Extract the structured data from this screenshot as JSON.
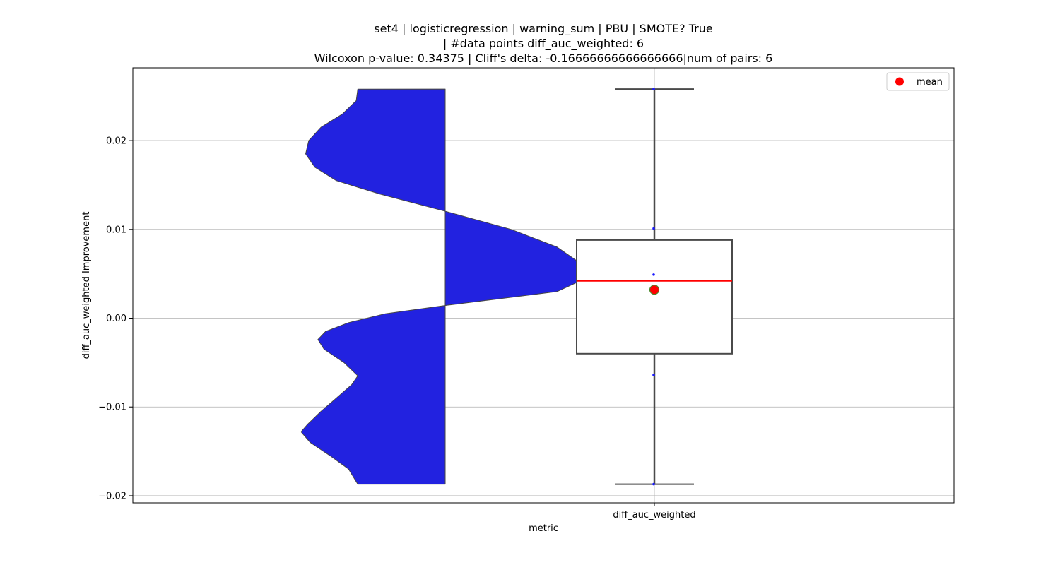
{
  "chart_data": {
    "type": "violin-box",
    "title": [
      "set4 | logisticregression | warning_sum | PBU | SMOTE? True",
      "| #data points diff_auc_weighted: 6",
      "Wilcoxon p-value: 0.34375 | Cliff's delta: -0.16666666666666666|num of pairs: 6"
    ],
    "xlabel": "metric",
    "ylabel": "diff_auc_weighted Improvement",
    "categories": [
      "diff_auc_weighted"
    ],
    "ylim": [
      -0.0208,
      0.0282
    ],
    "yticks": [
      -0.02,
      -0.01,
      0.0,
      0.01,
      0.02
    ],
    "ytick_labels": [
      "−0.02",
      "−0.01",
      "0.00",
      "0.01",
      "0.02"
    ],
    "grid": true,
    "legend": {
      "placement": "top-right",
      "entries": [
        {
          "label": "mean",
          "color": "#ff0000"
        }
      ]
    },
    "points": [
      0.0258,
      0.0101,
      0.0049,
      -0.0064,
      -0.0187,
      0.0032
    ],
    "box": {
      "q1": -0.004,
      "median": 0.0042,
      "q3": 0.0088,
      "whisker_low": -0.0187,
      "whisker_high": 0.0258,
      "mean": 0.0032
    },
    "violin_density": [
      {
        "y": 0.0258,
        "d": 0.0
      },
      {
        "y": 0.0245,
        "d": 0.01
      },
      {
        "y": 0.023,
        "d": 0.1
      },
      {
        "y": 0.0215,
        "d": 0.24
      },
      {
        "y": 0.02,
        "d": 0.32
      },
      {
        "y": 0.0185,
        "d": 0.34
      },
      {
        "y": 0.017,
        "d": 0.28
      },
      {
        "y": 0.0155,
        "d": 0.14
      },
      {
        "y": 0.014,
        "d": -0.14
      },
      {
        "y": 0.012,
        "d": -0.58
      },
      {
        "y": 0.01,
        "d": -1.0
      },
      {
        "y": 0.008,
        "d": -1.3
      },
      {
        "y": 0.005,
        "d": -1.55
      },
      {
        "y": 0.003,
        "d": -1.3
      },
      {
        "y": 0.0015,
        "d": -0.6
      },
      {
        "y": 0.0005,
        "d": -0.18
      },
      {
        "y": -0.0005,
        "d": 0.06
      },
      {
        "y": -0.0015,
        "d": 0.21
      },
      {
        "y": -0.0024,
        "d": 0.26
      },
      {
        "y": -0.0035,
        "d": 0.22
      },
      {
        "y": -0.005,
        "d": 0.09
      },
      {
        "y": -0.0065,
        "d": 0.0
      },
      {
        "y": -0.0075,
        "d": 0.04
      },
      {
        "y": -0.009,
        "d": 0.14
      },
      {
        "y": -0.0105,
        "d": 0.24
      },
      {
        "y": -0.012,
        "d": 0.33
      },
      {
        "y": -0.0128,
        "d": 0.37
      },
      {
        "y": -0.014,
        "d": 0.31
      },
      {
        "y": -0.0155,
        "d": 0.18
      },
      {
        "y": -0.017,
        "d": 0.06
      },
      {
        "y": -0.0187,
        "d": 0.0
      }
    ],
    "colors": {
      "violin_fill": "#2222e0",
      "box_edge": "#4a4a4a",
      "median": "#ff0000",
      "mean_marker": "#ff0000",
      "mean_edge": "#4a8a2a",
      "points": "#1a1aff",
      "grid": "#b0b0b0"
    }
  }
}
